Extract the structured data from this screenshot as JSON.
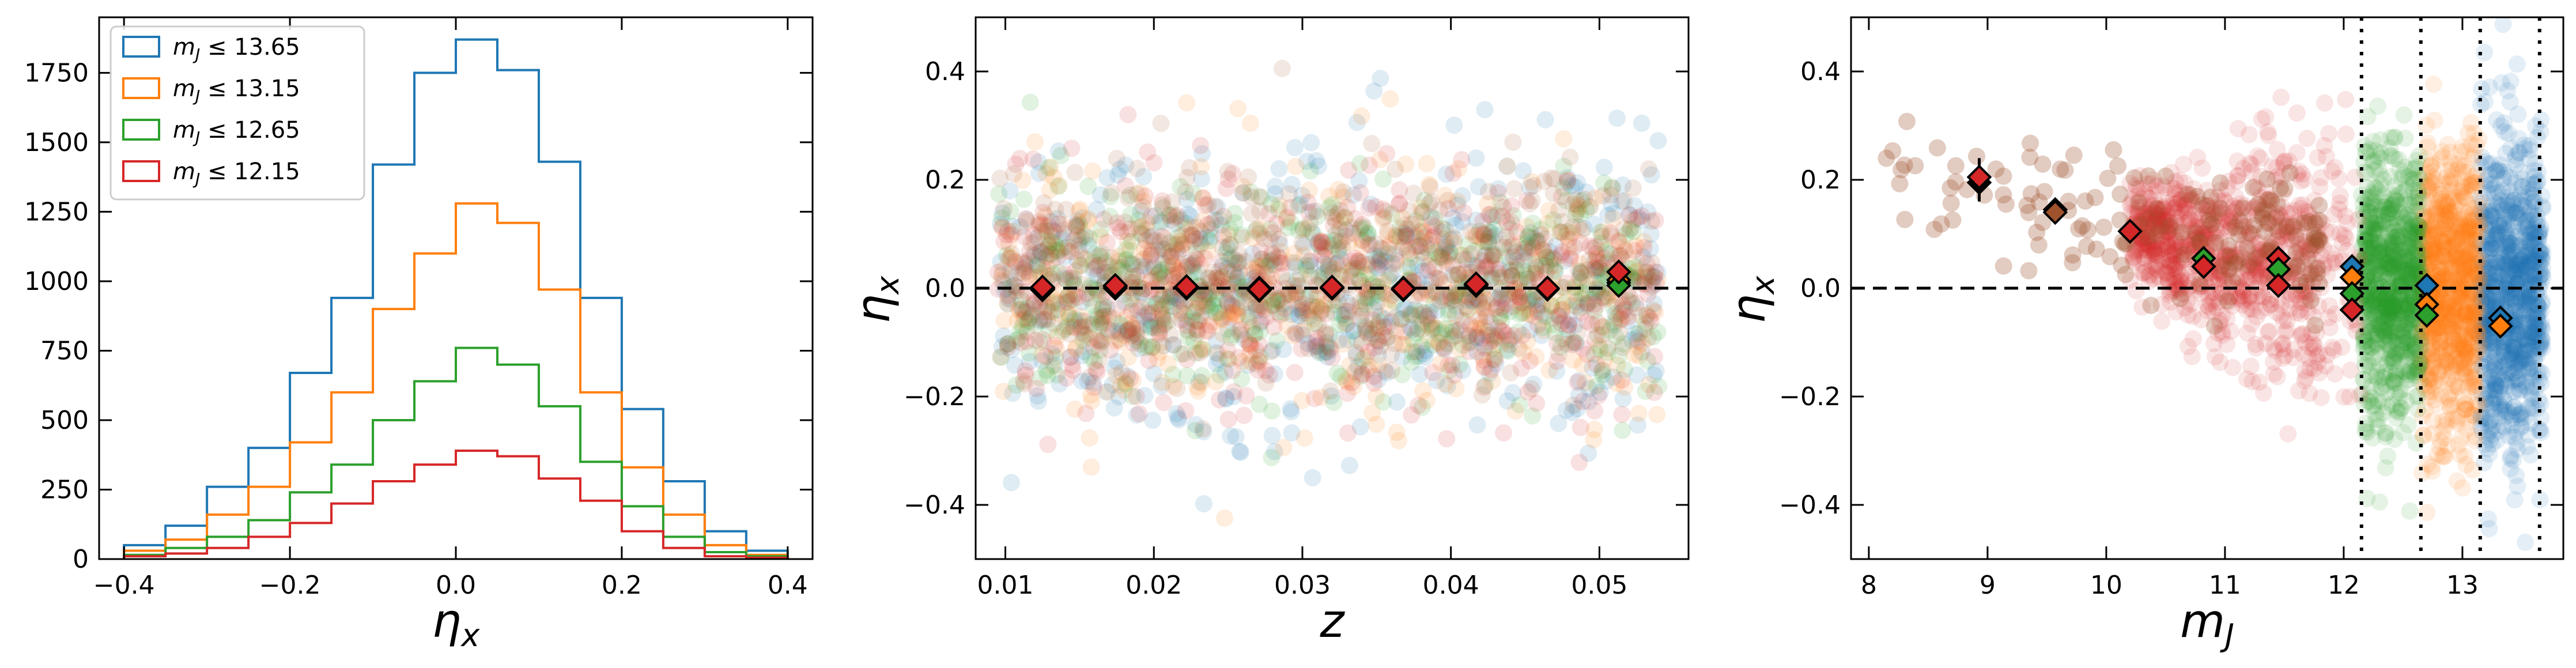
{
  "chart_data": [
    {
      "type": "histogram",
      "xlabel": "η_x",
      "ylabel": "",
      "xlim": [
        -0.43,
        0.43
      ],
      "ylim": [
        0,
        1950
      ],
      "xticks": [
        -0.4,
        -0.2,
        0.0,
        0.2,
        0.4
      ],
      "xtick_labels": [
        "−0.4",
        "−0.2",
        "0.0",
        "0.2",
        "0.4"
      ],
      "yticks": [
        0,
        250,
        500,
        750,
        1000,
        1250,
        1500,
        1750
      ],
      "ytick_labels": [
        "0",
        "250",
        "500",
        "750",
        "1000",
        "1250",
        "1500",
        "1750"
      ],
      "legend_position": "top-left",
      "bin_edges": [
        -0.4,
        -0.35,
        -0.3,
        -0.25,
        -0.2,
        -0.15,
        -0.1,
        -0.05,
        0.0,
        0.05,
        0.1,
        0.15,
        0.2,
        0.25,
        0.3,
        0.35,
        0.4
      ],
      "series": [
        {
          "name": "m_J ≤ 13.65",
          "color": "#1f77b4",
          "values": [
            50,
            120,
            260,
            400,
            670,
            940,
            1420,
            1750,
            1870,
            1760,
            1430,
            940,
            540,
            280,
            100,
            30
          ]
        },
        {
          "name": "m_J ≤ 13.15",
          "color": "#ff7f0e",
          "values": [
            30,
            70,
            160,
            260,
            420,
            600,
            900,
            1100,
            1280,
            1210,
            970,
            600,
            330,
            160,
            50,
            15
          ]
        },
        {
          "name": "m_J ≤ 12.65",
          "color": "#2ca02c",
          "values": [
            15,
            40,
            80,
            140,
            240,
            340,
            500,
            640,
            760,
            700,
            550,
            350,
            190,
            80,
            25,
            10
          ]
        },
        {
          "name": "m_J ≤ 12.15",
          "color": "#d62728",
          "values": [
            10,
            20,
            40,
            80,
            130,
            200,
            280,
            340,
            390,
            370,
            290,
            210,
            100,
            40,
            10,
            5
          ]
        }
      ]
    },
    {
      "type": "scatter",
      "xlabel": "z",
      "ylabel": "η_x",
      "xlim": [
        0.008,
        0.056
      ],
      "ylim": [
        -0.5,
        0.5
      ],
      "xticks": [
        0.01,
        0.02,
        0.03,
        0.04,
        0.05
      ],
      "xtick_labels": [
        "0.01",
        "0.02",
        "0.03",
        "0.04",
        "0.05"
      ],
      "yticks": [
        -0.4,
        -0.2,
        0.0,
        0.2,
        0.4
      ],
      "ytick_labels": [
        "−0.4",
        "−0.2",
        "0.0",
        "0.2",
        "0.4"
      ],
      "reference_line_y": 0.0,
      "scatter_colors": [
        "#1f77b4",
        "#ff7f0e",
        "#2ca02c",
        "#d62728",
        "#a0522d"
      ],
      "binned_means": {
        "x": [
          0.0125,
          0.0174,
          0.0222,
          0.0271,
          0.032,
          0.0368,
          0.0417,
          0.0465,
          0.0513
        ],
        "series": [
          {
            "color": "#1f77b4",
            "values": [
              0.0,
              0.0,
              0.0,
              0.0,
              0.0,
              0.0,
              0.005,
              0.0,
              0.01
            ]
          },
          {
            "color": "#ff7f0e",
            "values": [
              0.0,
              0.003,
              0.0,
              -0.003,
              0.0,
              -0.002,
              0.005,
              0.0,
              0.015
            ]
          },
          {
            "color": "#2ca02c",
            "values": [
              -0.003,
              0.003,
              0.002,
              -0.004,
              0.001,
              -0.003,
              0.006,
              -0.002,
              0.005
            ]
          },
          {
            "color": "#d62728",
            "values": [
              0.002,
              0.005,
              0.003,
              -0.002,
              0.002,
              -0.001,
              0.008,
              0.0,
              0.03
            ]
          }
        ]
      }
    },
    {
      "type": "scatter",
      "xlabel": "m_J",
      "ylabel": "η_x",
      "xlim": [
        7.85,
        13.85
      ],
      "ylim": [
        -0.5,
        0.5
      ],
      "xticks": [
        8,
        9,
        10,
        11,
        12,
        13
      ],
      "xtick_labels": [
        "8",
        "9",
        "10",
        "11",
        "12",
        "13"
      ],
      "yticks": [
        -0.4,
        -0.2,
        0.0,
        0.2,
        0.4
      ],
      "ytick_labels": [
        "−0.4",
        "−0.2",
        "0.0",
        "0.2",
        "0.4"
      ],
      "reference_line_y": 0.0,
      "vertical_lines_x": [
        12.15,
        12.65,
        13.15,
        13.65
      ],
      "scatter_colors": [
        "#1f77b4",
        "#ff7f0e",
        "#2ca02c",
        "#d62728",
        "#a0522d"
      ],
      "binned_means": [
        {
          "x": 8.93,
          "y": 0.195,
          "color": "#000000"
        },
        {
          "x": 8.93,
          "y": 0.205,
          "color": "#d62728"
        },
        {
          "x": 9.57,
          "y": 0.145,
          "color": "#d62728"
        },
        {
          "x": 9.57,
          "y": 0.14,
          "color": "#a0522d"
        },
        {
          "x": 10.2,
          "y": 0.105,
          "color": "#d62728"
        },
        {
          "x": 10.82,
          "y": 0.055,
          "color": "#2ca02c"
        },
        {
          "x": 10.82,
          "y": 0.04,
          "color": "#d62728"
        },
        {
          "x": 11.45,
          "y": 0.055,
          "color": "#d62728"
        },
        {
          "x": 11.45,
          "y": 0.035,
          "color": "#2ca02c"
        },
        {
          "x": 11.45,
          "y": 0.005,
          "color": "#d62728"
        },
        {
          "x": 12.07,
          "y": 0.04,
          "color": "#1f77b4"
        },
        {
          "x": 12.07,
          "y": 0.02,
          "color": "#ff7f0e"
        },
        {
          "x": 12.07,
          "y": -0.01,
          "color": "#2ca02c"
        },
        {
          "x": 12.07,
          "y": -0.04,
          "color": "#d62728"
        },
        {
          "x": 12.7,
          "y": 0.005,
          "color": "#1f77b4"
        },
        {
          "x": 12.7,
          "y": -0.03,
          "color": "#ff7f0e"
        },
        {
          "x": 12.7,
          "y": -0.05,
          "color": "#2ca02c"
        },
        {
          "x": 13.32,
          "y": -0.055,
          "color": "#1f77b4"
        },
        {
          "x": 13.32,
          "y": -0.07,
          "color": "#ff7f0e"
        }
      ]
    }
  ]
}
